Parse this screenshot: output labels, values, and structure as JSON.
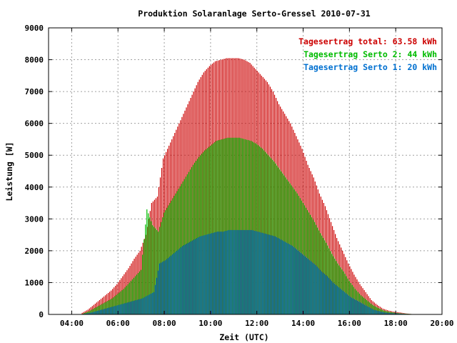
{
  "chart_data": {
    "type": "bar",
    "title": "Produktion Solaranlage Serto-Gressel 2010-07-31",
    "xlabel": "Zeit (UTC)",
    "ylabel": "Leistung [W]",
    "xlim": [
      3,
      20
    ],
    "ylim": [
      0,
      9000
    ],
    "x_ticks": [
      {
        "value": 4,
        "label": "04:00"
      },
      {
        "value": 6,
        "label": "06:00"
      },
      {
        "value": 8,
        "label": "08:00"
      },
      {
        "value": 10,
        "label": "10:00"
      },
      {
        "value": 12,
        "label": "12:00"
      },
      {
        "value": 14,
        "label": "14:00"
      },
      {
        "value": 16,
        "label": "16:00"
      },
      {
        "value": 18,
        "label": "18:00"
      },
      {
        "value": 20,
        "label": "20:00"
      }
    ],
    "y_ticks": [
      0,
      1000,
      2000,
      3000,
      4000,
      5000,
      6000,
      7000,
      8000,
      9000
    ],
    "grid": true,
    "legend_position": "top-right",
    "legend": [
      {
        "label": "Tagesertrag total: 63.58 kWh",
        "color": "#cc0000"
      },
      {
        "label": "Tagesertrag Serto 2: 44 kWh",
        "color": "#00bb00"
      },
      {
        "label": "Tagesertrag Serto 1: 20 kWh",
        "color": "#0070d0"
      }
    ],
    "series": [
      {
        "name": "total",
        "color": "#cc0000",
        "x": [
          4.5,
          4.75,
          5.0,
          5.25,
          5.5,
          5.75,
          6.0,
          6.25,
          6.5,
          6.75,
          7.0,
          7.25,
          7.5,
          7.75,
          8.0,
          8.25,
          8.5,
          8.75,
          9.0,
          9.25,
          9.5,
          9.75,
          10.0,
          10.25,
          10.5,
          10.75,
          11.0,
          11.25,
          11.5,
          11.75,
          12.0,
          12.25,
          12.5,
          12.75,
          13.0,
          13.25,
          13.5,
          13.75,
          14.0,
          14.25,
          14.5,
          14.75,
          15.0,
          15.25,
          15.5,
          15.75,
          16.0,
          16.25,
          16.5,
          16.75,
          17.0,
          17.25,
          17.5,
          17.75,
          18.0,
          18.25,
          18.5,
          18.75,
          19.0
        ],
        "values": [
          50,
          150,
          300,
          450,
          600,
          750,
          950,
          1200,
          1450,
          1750,
          2000,
          2500,
          3500,
          3700,
          4900,
          5300,
          5700,
          6100,
          6500,
          6900,
          7300,
          7600,
          7800,
          7950,
          8000,
          8050,
          8050,
          8050,
          8000,
          7900,
          7700,
          7500,
          7300,
          7000,
          6600,
          6300,
          6000,
          5600,
          5200,
          4700,
          4300,
          3800,
          3400,
          2900,
          2400,
          2000,
          1600,
          1250,
          950,
          700,
          450,
          300,
          180,
          120,
          80,
          60,
          30,
          10,
          0
        ]
      },
      {
        "name": "Serto 2",
        "color": "#00bb00",
        "x": [
          4.5,
          4.75,
          5.0,
          5.25,
          5.5,
          5.75,
          6.0,
          6.25,
          6.5,
          6.75,
          7.0,
          7.25,
          7.5,
          7.75,
          8.0,
          8.25,
          8.5,
          8.75,
          9.0,
          9.25,
          9.5,
          9.75,
          10.0,
          10.25,
          10.5,
          10.75,
          11.0,
          11.25,
          11.5,
          11.75,
          12.0,
          12.25,
          12.5,
          12.75,
          13.0,
          13.25,
          13.5,
          13.75,
          14.0,
          14.25,
          14.5,
          14.75,
          15.0,
          15.25,
          15.5,
          15.75,
          16.0,
          16.25,
          16.5,
          16.75,
          17.0,
          17.25,
          17.5,
          17.75,
          18.0,
          18.25,
          18.5,
          18.75,
          19.0
        ],
        "values": [
          30,
          100,
          200,
          300,
          400,
          500,
          650,
          800,
          1000,
          1200,
          1400,
          3300,
          2800,
          2600,
          3200,
          3500,
          3800,
          4100,
          4400,
          4700,
          4950,
          5150,
          5300,
          5450,
          5500,
          5550,
          5550,
          5550,
          5500,
          5450,
          5350,
          5200,
          5000,
          4800,
          4550,
          4300,
          4050,
          3800,
          3500,
          3200,
          2900,
          2550,
          2250,
          1900,
          1600,
          1350,
          1050,
          800,
          600,
          450,
          300,
          200,
          120,
          80,
          50,
          30,
          20,
          10,
          0
        ]
      },
      {
        "name": "Serto 1",
        "color": "#0070d0",
        "x": [
          4.5,
          4.75,
          5.0,
          5.25,
          5.5,
          5.75,
          6.0,
          6.25,
          6.5,
          6.75,
          7.0,
          7.25,
          7.5,
          7.75,
          8.0,
          8.25,
          8.5,
          8.75,
          9.0,
          9.25,
          9.5,
          9.75,
          10.0,
          10.25,
          10.5,
          10.75,
          11.0,
          11.25,
          11.5,
          11.75,
          12.0,
          12.25,
          12.5,
          12.75,
          13.0,
          13.25,
          13.5,
          13.75,
          14.0,
          14.25,
          14.5,
          14.75,
          15.0,
          15.25,
          15.5,
          15.75,
          16.0,
          16.25,
          16.5,
          16.75,
          17.0,
          17.25,
          17.5,
          17.75,
          18.0,
          18.25,
          18.5,
          18.75,
          19.0
        ],
        "values": [
          20,
          50,
          100,
          150,
          200,
          250,
          300,
          350,
          400,
          450,
          500,
          600,
          700,
          1600,
          1700,
          1850,
          2000,
          2150,
          2250,
          2350,
          2450,
          2500,
          2550,
          2600,
          2600,
          2650,
          2650,
          2650,
          2650,
          2650,
          2600,
          2550,
          2500,
          2450,
          2350,
          2250,
          2150,
          2000,
          1850,
          1700,
          1550,
          1350,
          1200,
          1000,
          850,
          700,
          550,
          450,
          350,
          250,
          150,
          100,
          60,
          40,
          30,
          20,
          10,
          5,
          0
        ]
      }
    ]
  }
}
